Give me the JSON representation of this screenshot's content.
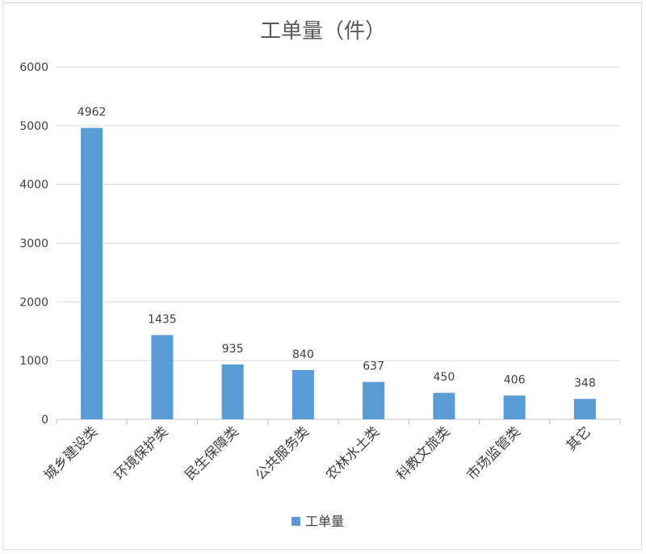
{
  "chart_data": {
    "type": "bar",
    "title": "工单量（件）",
    "xlabel": "",
    "ylabel": "",
    "categories": [
      "城乡建设类",
      "环境保护类",
      "民生保障类",
      "公共服务类",
      "农林水土类",
      "科教文旅类",
      "市场监管类",
      "其它"
    ],
    "series": [
      {
        "name": "工单量",
        "values": [
          4962,
          1435,
          935,
          840,
          637,
          450,
          406,
          348
        ]
      }
    ],
    "ylim": [
      0,
      6000
    ],
    "yticks": [
      0,
      1000,
      2000,
      3000,
      4000,
      5000,
      6000
    ],
    "grid": true,
    "legend": "bottom",
    "colors": {
      "bar": "#5b9bd5",
      "grid": "#d9d9d9",
      "axis": "#bfbfbf"
    }
  }
}
